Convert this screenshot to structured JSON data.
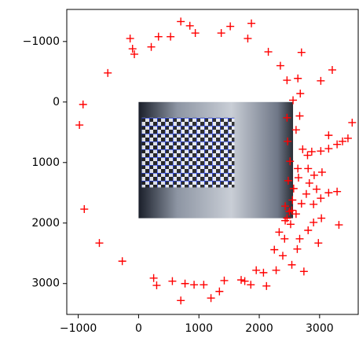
{
  "chart_data": {
    "type": "scatter",
    "marker": "+",
    "color": "#ff0000",
    "xlim": [
      -1190,
      3640
    ],
    "ylim": [
      -1530,
      3510
    ],
    "y_inverted": true,
    "image_extent": [
      0,
      2560,
      0,
      1920
    ],
    "xticks": [
      {
        "value": -1000,
        "label": "−1000"
      },
      0,
      1000,
      2000,
      3000
    ],
    "yticks": [
      {
        "value": -1000,
        "label": "−1000"
      },
      0,
      1000,
      2000,
      3000
    ],
    "x": [
      -140,
      -100,
      -70,
      210,
      330,
      530,
      700,
      850,
      940,
      1370,
      1520,
      1810,
      1870,
      2150,
      2350,
      2700,
      2460,
      2640,
      3020,
      3210,
      -510,
      -920,
      -980,
      -900,
      -650,
      -270,
      250,
      300,
      560,
      770,
      700,
      920,
      1080,
      1200,
      1340,
      1420,
      1700,
      1760,
      1860,
      1950,
      2120,
      2070,
      2280,
      2540,
      2740,
      2980,
      3320,
      2630,
      2670,
      2810,
      2900,
      3030,
      2420,
      2390,
      2250,
      2330,
      2430,
      2500,
      2610,
      2900,
      3020,
      3150,
      3290,
      2570,
      2830,
      2650,
      2910,
      3040,
      2950,
      2780,
      2700,
      2550,
      2430,
      2520,
      2720,
      2870,
      3020,
      3150,
      3290,
      3380,
      3470,
      3540,
      3150,
      2800,
      2810,
      2640,
      2610,
      2670,
      2560,
      2680,
      2460,
      2470,
      2510,
      2480,
      2540,
      2460
    ],
    "y": [
      -1050,
      -880,
      -790,
      -910,
      -1080,
      -1080,
      -1330,
      -1260,
      -1140,
      -1140,
      -1250,
      -1050,
      -1300,
      -830,
      -600,
      -820,
      -360,
      -390,
      -350,
      -530,
      -480,
      40,
      380,
      1770,
      2330,
      2630,
      2910,
      3030,
      2960,
      3000,
      3280,
      3020,
      3020,
      3240,
      3130,
      2950,
      2940,
      2960,
      3020,
      2780,
      3040,
      2820,
      2780,
      2690,
      2800,
      2330,
      2030,
      2430,
      2260,
      2120,
      1990,
      1920,
      2260,
      2540,
      2440,
      2150,
      1960,
      1810,
      1850,
      1690,
      1590,
      1500,
      1480,
      1430,
      1340,
      1250,
      1210,
      1160,
      1440,
      1520,
      1680,
      1620,
      1720,
      2020,
      780,
      820,
      810,
      770,
      700,
      650,
      600,
      340,
      550,
      880,
      1100,
      1100,
      460,
      230,
      -30,
      -140,
      260,
      650,
      980,
      1300,
      1790,
      1920
    ]
  }
}
